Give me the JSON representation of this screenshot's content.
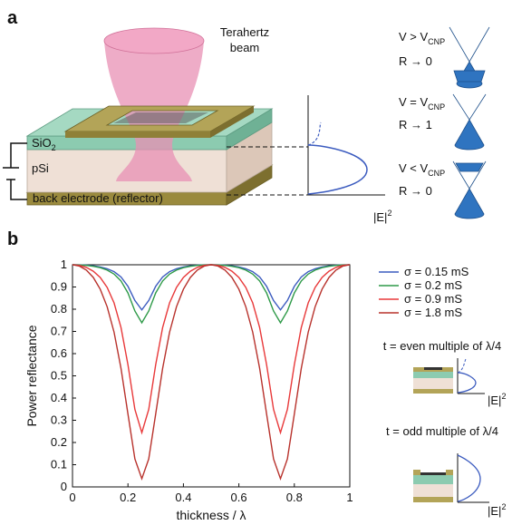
{
  "panel_a": {
    "label": "a",
    "beam_line1": "Terahertz",
    "beam_line2": "beam",
    "sio2": "SiO",
    "sio2_sub": "2",
    "psi": "pSi",
    "electrode": "back electrode (reflector)",
    "field_label": "|E|",
    "field_sup": "2",
    "states": [
      {
        "v": "V > V",
        "v_sub": "CNP",
        "r": "R → 0"
      },
      {
        "v": "V = V",
        "v_sub": "CNP",
        "r": "R → 1"
      },
      {
        "v": "V < V",
        "v_sub": "CNP",
        "r": "R → 0"
      }
    ]
  },
  "panel_b": {
    "label": "b",
    "inset_even": "t = even multiple of λ/4",
    "inset_odd": "t = odd multiple of λ/4",
    "field_label": "|E|",
    "field_sup": "2"
  },
  "chart_data": {
    "type": "line",
    "xlabel": "thickness / λ",
    "ylabel": "Power reflectance",
    "xlim": [
      0,
      1
    ],
    "ylim": [
      0,
      1
    ],
    "xticks": [
      0,
      0.2,
      0.4,
      0.6,
      0.8,
      1
    ],
    "yticks": [
      0,
      0.1,
      0.2,
      0.3,
      0.4,
      0.5,
      0.6,
      0.7,
      0.8,
      0.9,
      1
    ],
    "x": [
      0,
      0.025,
      0.05,
      0.075,
      0.1,
      0.125,
      0.15,
      0.175,
      0.2,
      0.225,
      0.25,
      0.275,
      0.3,
      0.325,
      0.35,
      0.375,
      0.4,
      0.425,
      0.45,
      0.475,
      0.5,
      0.525,
      0.55,
      0.575,
      0.6,
      0.625,
      0.65,
      0.675,
      0.7,
      0.725,
      0.75,
      0.775,
      0.8,
      0.825,
      0.85,
      0.875,
      0.9,
      0.925,
      0.95,
      0.975,
      1
    ],
    "series": [
      {
        "name": "σ = 0.15 mS",
        "color": "#3b5bbf",
        "values": [
          1,
          0.9995,
          0.998,
          0.995,
          0.99,
          0.982,
          0.969,
          0.945,
          0.903,
          0.839,
          0.797,
          0.839,
          0.903,
          0.945,
          0.969,
          0.982,
          0.99,
          0.995,
          0.998,
          0.9995,
          1,
          0.9995,
          0.998,
          0.995,
          0.99,
          0.982,
          0.969,
          0.945,
          0.903,
          0.839,
          0.797,
          0.839,
          0.903,
          0.945,
          0.969,
          0.982,
          0.99,
          0.995,
          0.998,
          0.9995,
          1
        ]
      },
      {
        "name": "σ = 0.2 mS",
        "color": "#2e9a48",
        "values": [
          1,
          0.999,
          0.997,
          0.993,
          0.987,
          0.976,
          0.958,
          0.927,
          0.873,
          0.792,
          0.739,
          0.792,
          0.873,
          0.927,
          0.958,
          0.976,
          0.987,
          0.993,
          0.997,
          0.999,
          1,
          0.999,
          0.997,
          0.993,
          0.987,
          0.976,
          0.958,
          0.927,
          0.873,
          0.792,
          0.739,
          0.792,
          0.873,
          0.927,
          0.958,
          0.976,
          0.987,
          0.993,
          0.997,
          0.999,
          1
        ]
      },
      {
        "name": "σ = 0.9 mS",
        "color": "#e8393a",
        "values": [
          1,
          0.997,
          0.988,
          0.971,
          0.943,
          0.898,
          0.828,
          0.717,
          0.55,
          0.349,
          0.244,
          0.349,
          0.55,
          0.717,
          0.828,
          0.898,
          0.943,
          0.971,
          0.988,
          0.997,
          1,
          0.997,
          0.988,
          0.971,
          0.943,
          0.898,
          0.828,
          0.717,
          0.55,
          0.349,
          0.244,
          0.349,
          0.55,
          0.717,
          0.828,
          0.898,
          0.943,
          0.971,
          0.988,
          0.997,
          1
        ]
      },
      {
        "name": "σ = 1.8 mS",
        "color": "#b8322c",
        "values": [
          1,
          0.994,
          0.976,
          0.943,
          0.89,
          0.811,
          0.696,
          0.533,
          0.328,
          0.126,
          0.037,
          0.126,
          0.328,
          0.533,
          0.696,
          0.811,
          0.89,
          0.943,
          0.976,
          0.994,
          1,
          0.994,
          0.976,
          0.943,
          0.89,
          0.811,
          0.696,
          0.533,
          0.328,
          0.126,
          0.037,
          0.126,
          0.328,
          0.533,
          0.696,
          0.811,
          0.89,
          0.943,
          0.976,
          0.994,
          1
        ]
      }
    ]
  }
}
